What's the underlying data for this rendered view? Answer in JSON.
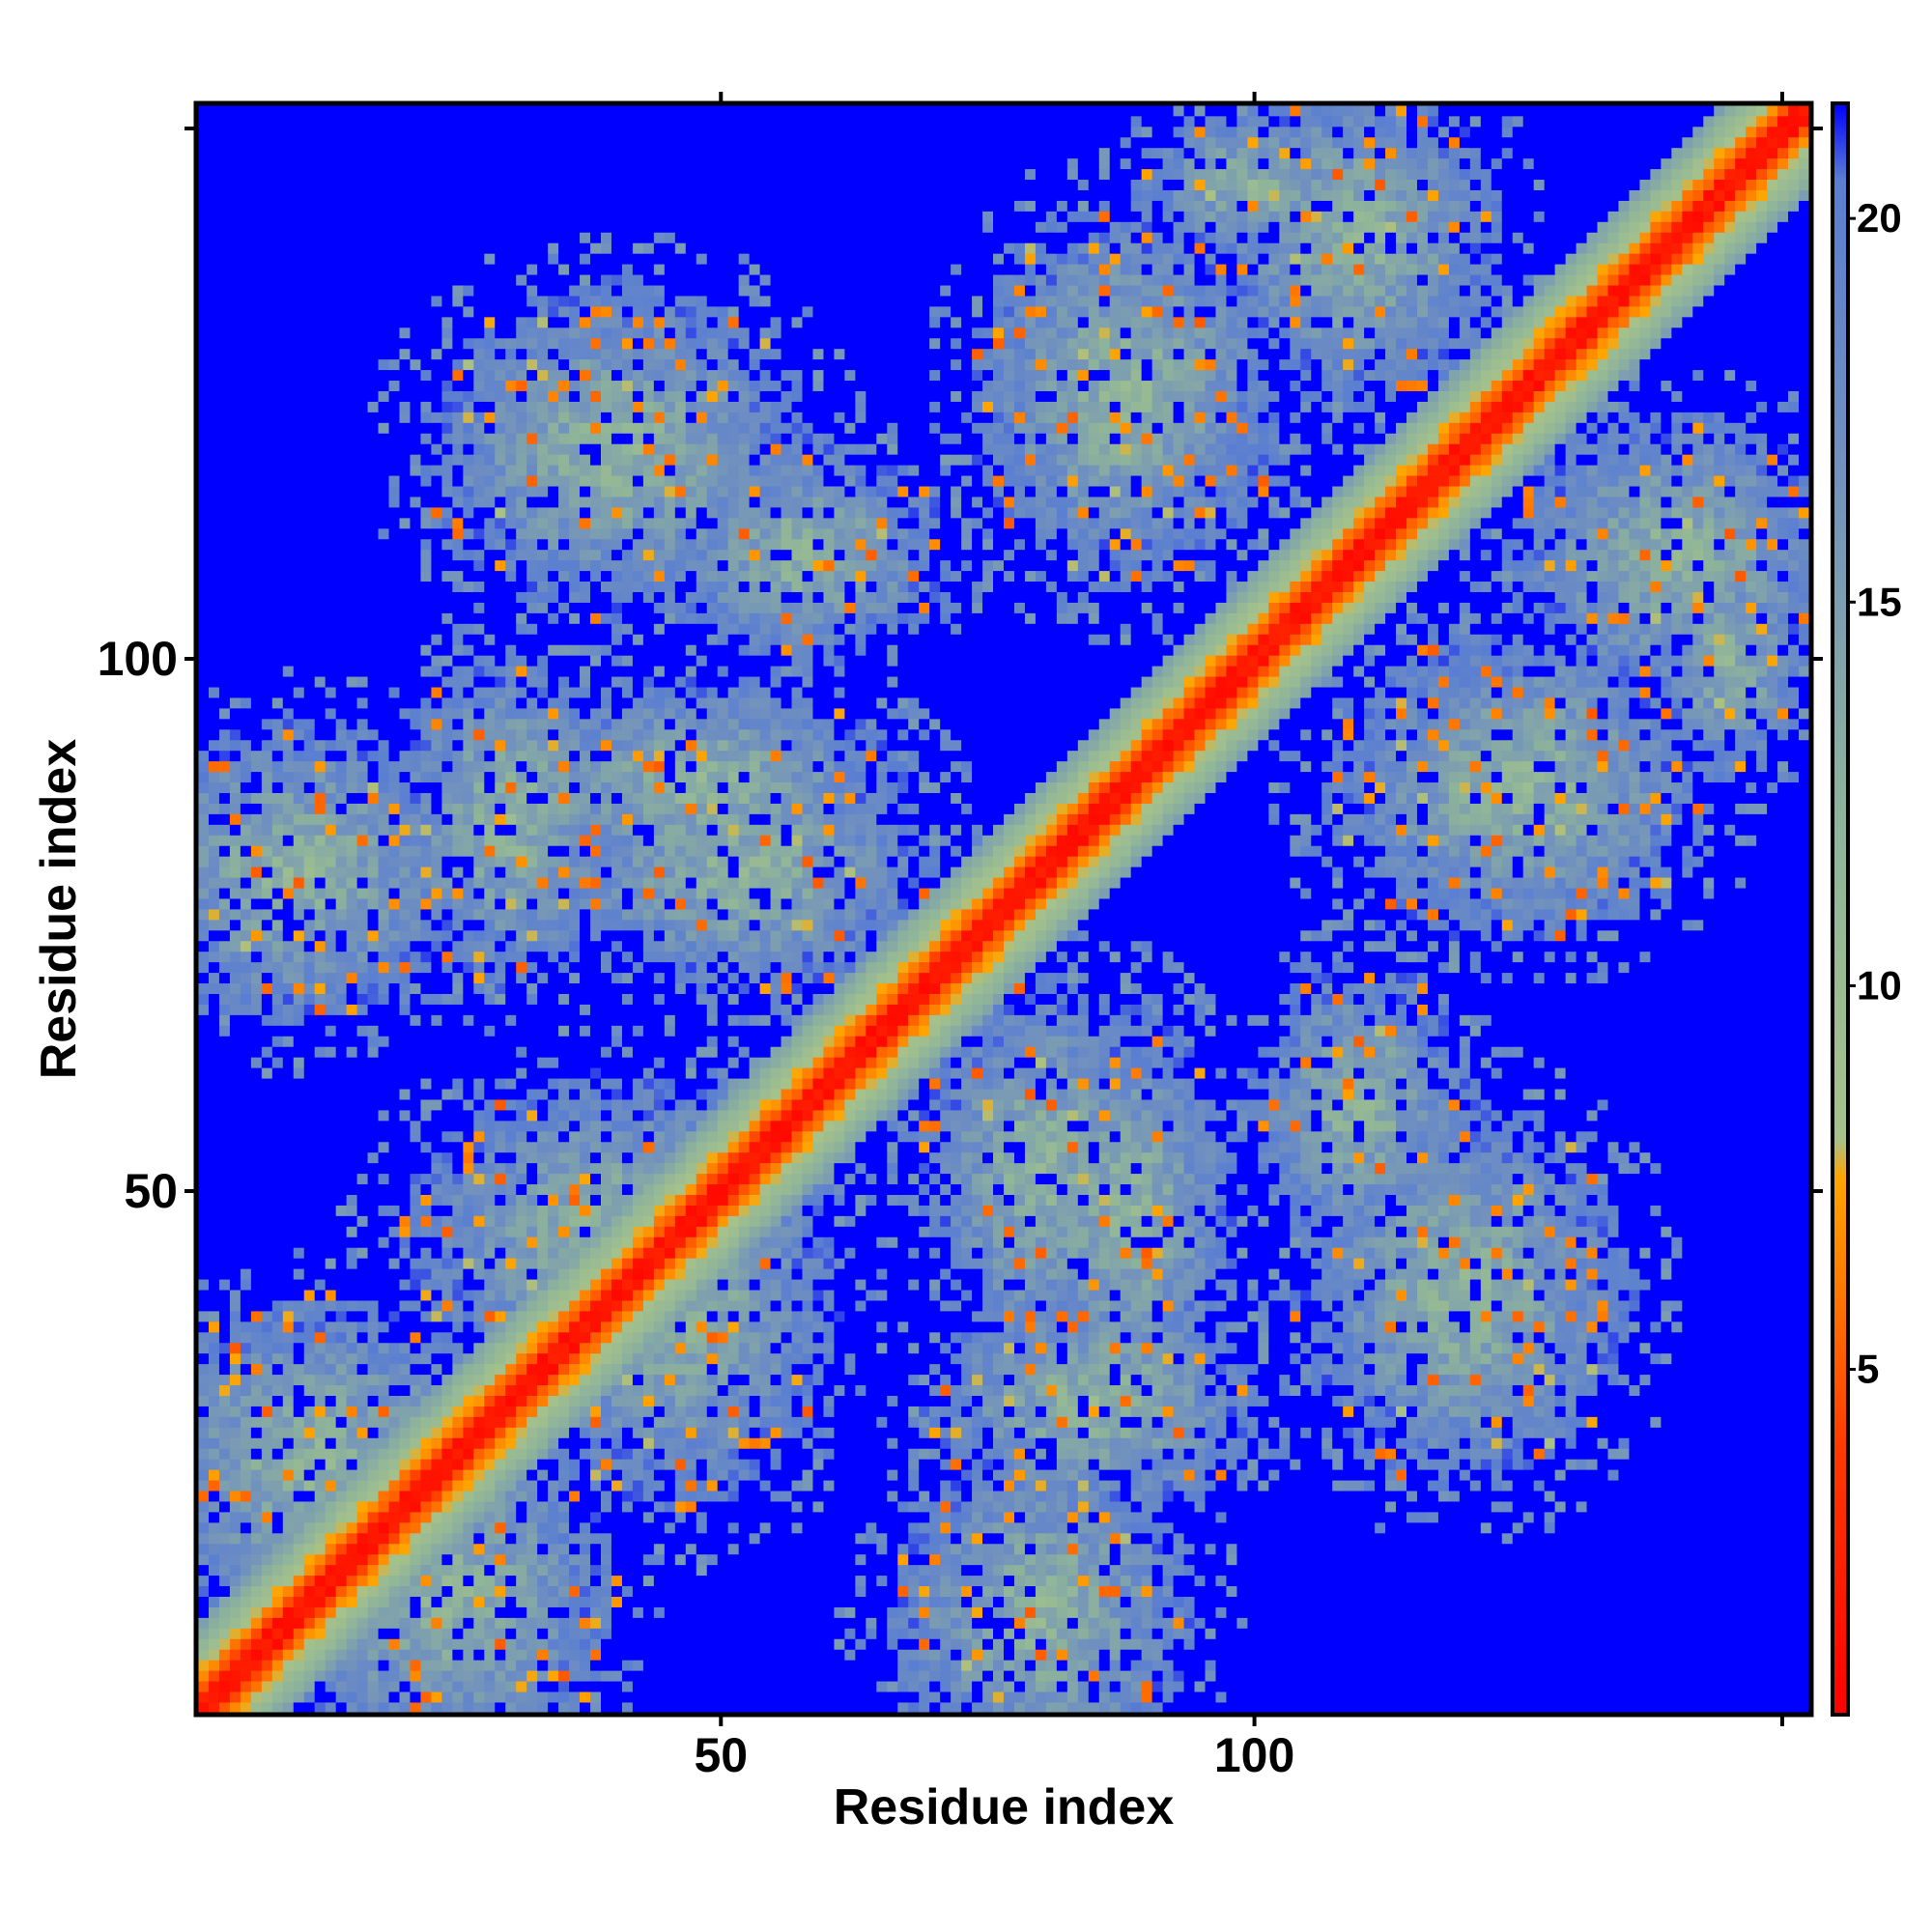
{
  "chart_data": {
    "type": "heatmap",
    "title": "",
    "xlabel": "Residue index",
    "ylabel": "Residue index",
    "n_residues": 152,
    "xlim": [
      1,
      152
    ],
    "ylim": [
      1,
      152
    ],
    "x_ticks": [
      50,
      100
    ],
    "x_tick_labels": [
      "50",
      "100"
    ],
    "y_ticks": [
      50,
      100
    ],
    "y_tick_labels": [
      "50",
      "100"
    ],
    "colorbar": {
      "range": [
        0.5,
        21.5
      ],
      "ticks": [
        5,
        10,
        15,
        20
      ],
      "tick_labels": [
        "5",
        "10",
        "15",
        "20"
      ],
      "stops": [
        {
          "value": 0.5,
          "color": "#ff0000"
        },
        {
          "value": 4.0,
          "color": "#ff3a00"
        },
        {
          "value": 7.5,
          "color": "#ffa500"
        },
        {
          "value": 8.0,
          "color": "#a6c28a"
        },
        {
          "value": 12.0,
          "color": "#8fb49a"
        },
        {
          "value": 17.0,
          "color": "#6f8fc0"
        },
        {
          "value": 20.5,
          "color": "#5a7ed2"
        },
        {
          "value": 21.5,
          "color": "#0000ff"
        }
      ]
    },
    "background_value": 21.5,
    "description_of_structure": {
      "diagonal_band_halfwidth": 8,
      "contact_blobs": [
        {
          "i": 24,
          "j": 12,
          "rx": 16,
          "ry": 14
        },
        {
          "i": 40,
          "j": 45,
          "rx": 18,
          "ry": 14
        },
        {
          "i": 48,
          "j": 88,
          "rx": 17,
          "ry": 9
        },
        {
          "i": 80,
          "j": 10,
          "rx": 14,
          "ry": 13
        },
        {
          "i": 80,
          "j": 52,
          "rx": 16,
          "ry": 10
        },
        {
          "i": 100,
          "j": 145,
          "rx": 10,
          "ry": 6
        },
        {
          "i": 110,
          "j": 58,
          "rx": 12,
          "ry": 9
        },
        {
          "i": 125,
          "j": 88,
          "rx": 13,
          "ry": 16
        },
        {
          "i": 140,
          "j": 110,
          "rx": 12,
          "ry": 14
        },
        {
          "i": 120,
          "j": 40,
          "rx": 16,
          "ry": 14
        },
        {
          "i": 85,
          "j": 30,
          "rx": 10,
          "ry": 14
        }
      ]
    }
  }
}
